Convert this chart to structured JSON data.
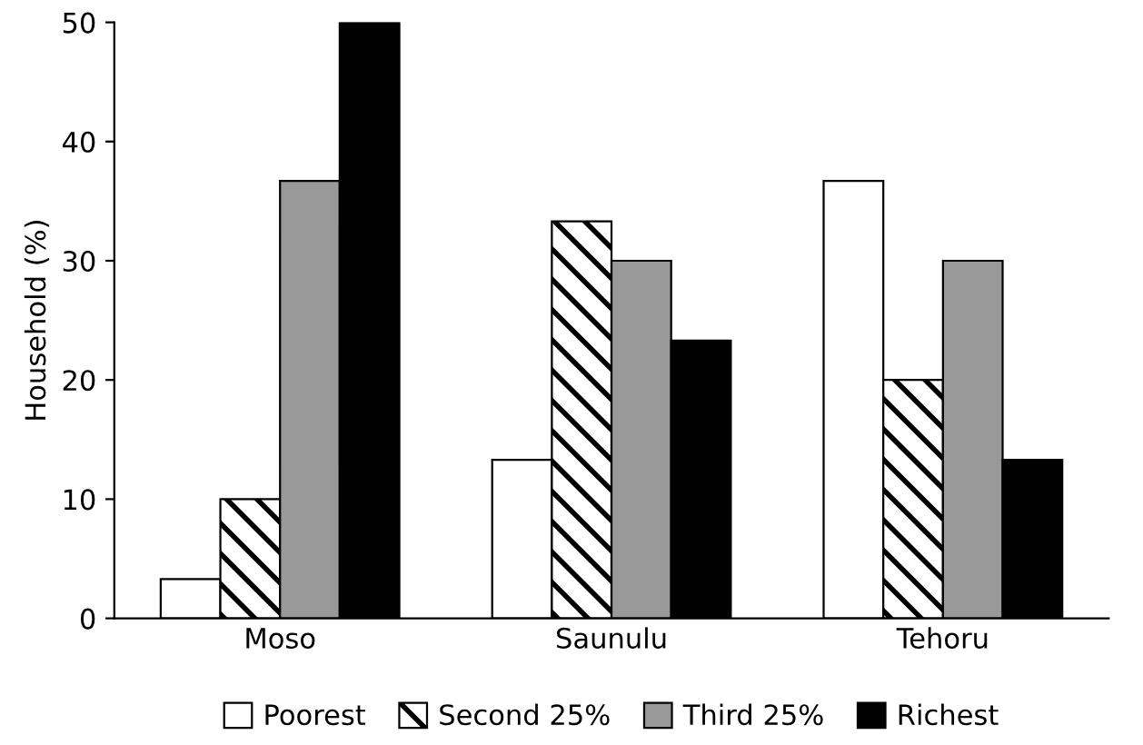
{
  "chart_data": {
    "type": "bar",
    "ylabel": "Household (%)",
    "categories": [
      "Moso",
      "Saunulu",
      "Tehoru"
    ],
    "series": [
      {
        "name": "Poorest",
        "color": "#ffffff",
        "values": [
          3.3,
          13.3,
          36.7
        ]
      },
      {
        "name": "Second 25%",
        "color": "#000000",
        "values": [
          10,
          33.3,
          20
        ]
      },
      {
        "name": "Third 25%",
        "color": "#999999",
        "values": [
          36.7,
          30,
          30
        ]
      },
      {
        "name": "Richest",
        "color": "#000000",
        "values": [
          50,
          23.3,
          13.3
        ]
      }
    ],
    "ylim": [
      0,
      50
    ],
    "yticks": [
      0,
      10,
      20,
      30,
      40,
      50
    ],
    "grid": false,
    "legend": "bottom"
  }
}
